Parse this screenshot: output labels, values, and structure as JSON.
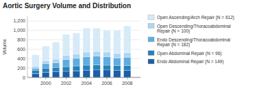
{
  "chart_data": {
    "type": "bar",
    "stacked": true,
    "title": "Aortic Surgery Volume and Distribution",
    "ylabel": "Volume",
    "x": [
      1999,
      2000,
      2001,
      2002,
      2003,
      2004,
      2005,
      2006,
      2007,
      2008
    ],
    "xlim": [
      1998.2,
      2009.3
    ],
    "xticks": [
      2000,
      2002,
      2004,
      2006,
      2008
    ],
    "ylim": [
      0,
      1300
    ],
    "yticks": [
      0,
      200,
      400,
      600,
      800,
      {
        "value": 1000,
        "label": "1,000"
      },
      {
        "value": 1200,
        "label": "1,200"
      }
    ],
    "grid": true,
    "legend": "right",
    "series": [
      {
        "name": "Endo Abdominal Repair (N = 149)",
        "color": "#1a5fa8",
        "values": [
          80,
          110,
          120,
          130,
          140,
          150,
          160,
          160,
          155,
          150
        ]
      },
      {
        "name": "Open Abdominal Repair (N = 96)",
        "color": "#2980b9",
        "values": [
          70,
          90,
          95,
          100,
          105,
          110,
          105,
          100,
          95,
          100
        ]
      },
      {
        "name": "Endo Descending/Thoracoabdominal\nRepair (N = 182)",
        "color": "#5dade2",
        "values": [
          45,
          90,
          100,
          150,
          160,
          175,
          185,
          175,
          165,
          180
        ]
      },
      {
        "name": "Open Descending/Thoracoabdominal\nRepair (N = 100)",
        "color": "#aed6f1",
        "values": [
          45,
          65,
          75,
          85,
          95,
          105,
          105,
          105,
          95,
          95
        ]
      },
      {
        "name": "Open Ascending/Arch Repair (N = 612)",
        "color": "#d6eaf8",
        "values": [
          240,
          310,
          360,
          450,
          445,
          510,
          490,
          460,
          490,
          570
        ]
      }
    ]
  }
}
